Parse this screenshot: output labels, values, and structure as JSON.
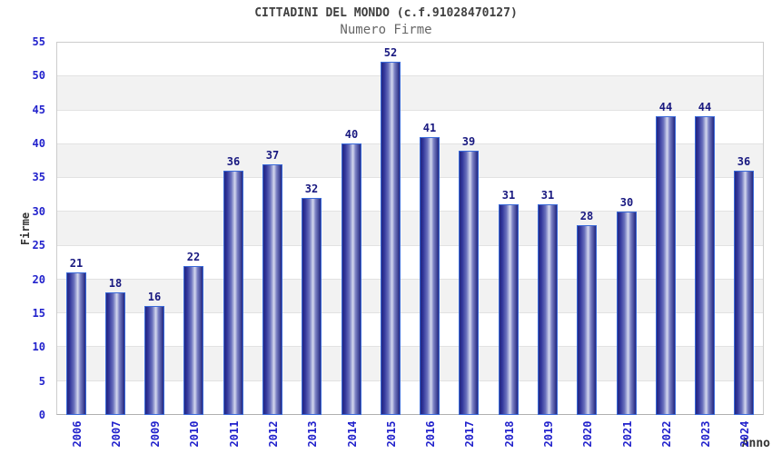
{
  "chart_data": {
    "type": "bar",
    "title": "CITTADINI DEL MONDO (c.f.91028470127)",
    "subtitle": "Numero Firme",
    "xlabel": "Anno",
    "ylabel": "Firme",
    "categories": [
      "2006",
      "2007",
      "2009",
      "2010",
      "2011",
      "2012",
      "2013",
      "2014",
      "2015",
      "2016",
      "2017",
      "2018",
      "2019",
      "2020",
      "2021",
      "2022",
      "2023",
      "2024"
    ],
    "values": [
      21,
      18,
      16,
      22,
      36,
      37,
      32,
      40,
      52,
      41,
      39,
      31,
      31,
      28,
      30,
      44,
      44,
      36
    ],
    "ylim": [
      0,
      55
    ],
    "yticks": [
      0,
      5,
      10,
      15,
      20,
      25,
      30,
      35,
      40,
      45,
      50,
      55
    ],
    "grid": "horizontal-bands-alternating",
    "legend": "none",
    "bar_value_labels": true,
    "x_tick_rotation_deg": 90,
    "colors": {
      "title_text": "#404040",
      "subtitle_text": "#666666",
      "axis_tick_text": "#2222cc",
      "bar_value_text": "#191980",
      "bar_border": "#3a6ad9",
      "bar_dark": "#23277f",
      "bar_mid": "#6a71bd",
      "bar_light": "#d4d8ee",
      "band_gray": "#f2f2f2"
    }
  }
}
